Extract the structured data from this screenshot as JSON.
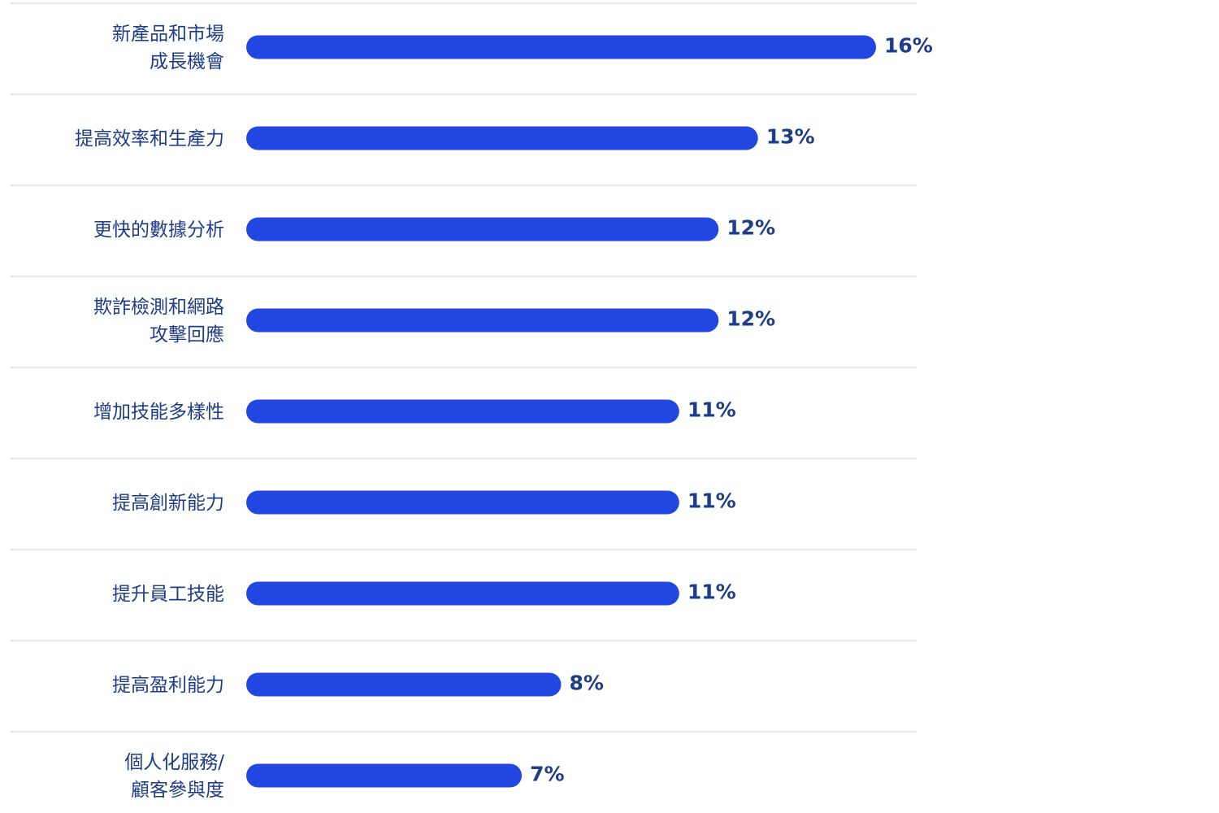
{
  "chart_data": {
    "type": "bar",
    "orientation": "horizontal",
    "categories": [
      "新產品和市場\n成長機會",
      "提高效率和生產力",
      "更快的數據分析",
      "欺詐檢測和網路\n攻擊回應",
      "增加技能多樣性",
      "提高創新能力",
      "提升員工技能",
      "提高盈利能力",
      "個人化服務/\n顧客參與度"
    ],
    "values": [
      16,
      13,
      12,
      12,
      11,
      11,
      11,
      8,
      7
    ],
    "value_labels": [
      "16%",
      "13%",
      "12%",
      "12%",
      "11%",
      "11%",
      "11%",
      "8%",
      "7%"
    ],
    "color": "#2146e2"
  }
}
